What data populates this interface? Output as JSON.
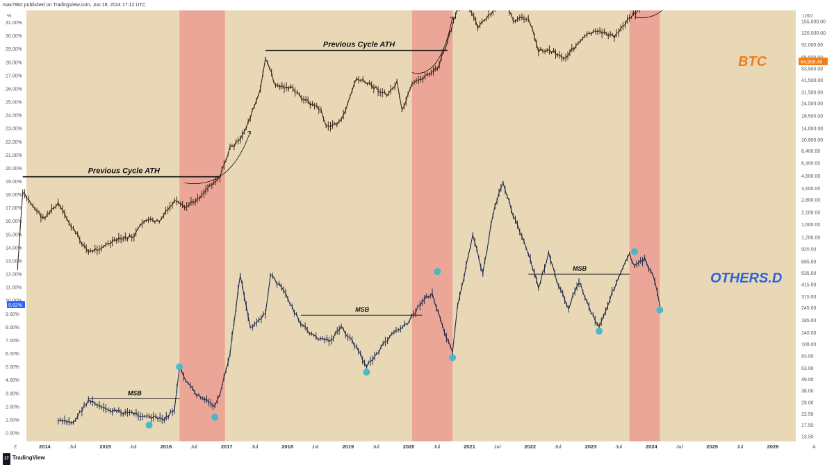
{
  "header": {
    "publisher": "max7882 published on TradingView.com, Jun 18, 2024 17:12 UTC"
  },
  "footer": {
    "brand": "TradingView",
    "brand_mark": "17",
    "left_axis_btn": "Z",
    "right_axis_btn": "A"
  },
  "colors": {
    "background": "#e8d8b6",
    "band": "#eca698",
    "btc_label": "#f07f1a",
    "others_label": "#2d62d9",
    "btc_candle": "#3a2418",
    "others_candle": "#1f2a4a",
    "marker": "#4ab8c8",
    "btc_price_tag": "#f07f1a",
    "others_value_tag": "#2962ff"
  },
  "chart_data": {
    "type": "line",
    "title": "",
    "left_axis": {
      "unit_label": "%",
      "ticks": [
        "31.00%",
        "30.00%",
        "29.00%",
        "28.00%",
        "27.00%",
        "26.00%",
        "25.00%",
        "24.00%",
        "23.00%",
        "22.00%",
        "21.00%",
        "20.00%",
        "19.00%",
        "18.00%",
        "17.00%",
        "16.00%",
        "15.00%",
        "14.00%",
        "13.00%",
        "12.00%",
        "11.00%",
        "10.00%",
        "9.00%",
        "8.00%",
        "7.00%",
        "6.00%",
        "5.00%",
        "4.00%",
        "3.00%",
        "2.00%",
        "1.00%",
        "0.00%"
      ],
      "current_value_label": "9.62%"
    },
    "right_axis": {
      "unit_label": "USD",
      "scale": "log",
      "ticks": [
        "155,000.00",
        "120,000.00",
        "92,000.00",
        "69,500.00",
        "53,500.00",
        "41,500.00",
        "31,500.00",
        "24,500.00",
        "18,500.00",
        "14,000.00",
        "10,800.00",
        "8,400.00",
        "6,400.00",
        "4,800.00",
        "3,600.00",
        "2,800.00",
        "2,100.00",
        "1,600.00",
        "1,200.00",
        "920.00",
        "695.00",
        "535.00",
        "415.00",
        "315.00",
        "245.00",
        "185.00",
        "140.00",
        "108.00",
        "83.00",
        "63.00",
        "49.00",
        "38.00",
        "29.00",
        "22.50",
        "17.50",
        "13.50"
      ],
      "current_price_label": "64,800.45"
    },
    "x_ticks": [
      {
        "label": "2014",
        "year": true
      },
      {
        "label": "Jul",
        "year": false
      },
      {
        "label": "2015",
        "year": true
      },
      {
        "label": "Jul",
        "year": false
      },
      {
        "label": "2016",
        "year": true
      },
      {
        "label": "Jul",
        "year": false
      },
      {
        "label": "2017",
        "year": true
      },
      {
        "label": "Jul",
        "year": false
      },
      {
        "label": "2018",
        "year": true
      },
      {
        "label": "Jul",
        "year": false
      },
      {
        "label": "2019",
        "year": true
      },
      {
        "label": "Jul",
        "year": false
      },
      {
        "label": "2020",
        "year": true
      },
      {
        "label": "Jul",
        "year": false
      },
      {
        "label": "2021",
        "year": true
      },
      {
        "label": "Jul",
        "year": false
      },
      {
        "label": "2022",
        "year": true
      },
      {
        "label": "Jul",
        "year": false
      },
      {
        "label": "2023",
        "year": true
      },
      {
        "label": "Jul",
        "year": false
      },
      {
        "label": "2024",
        "year": true
      },
      {
        "label": "Jul",
        "year": false
      },
      {
        "label": "2025",
        "year": true
      },
      {
        "label": "Jul",
        "year": false
      },
      {
        "label": "2026",
        "year": true
      },
      {
        "label": "Jul",
        "year": false
      }
    ],
    "highlight_periods": [
      {
        "start": "2016-07",
        "end": "2017-04"
      },
      {
        "start": "2020-05",
        "end": "2021-01"
      },
      {
        "start": "2023-12",
        "end": "2024-06"
      }
    ],
    "series": [
      {
        "name": "BTC",
        "unit": "USD",
        "points": [
          [
            "2013-11",
            150
          ],
          [
            "2013-12",
            800
          ],
          [
            "2014-02",
            600
          ],
          [
            "2014-04",
            450
          ],
          [
            "2014-07",
            620
          ],
          [
            "2014-10",
            350
          ],
          [
            "2015-01",
            210
          ],
          [
            "2015-04",
            240
          ],
          [
            "2015-07",
            280
          ],
          [
            "2015-10",
            300
          ],
          [
            "2015-12",
            430
          ],
          [
            "2016-03",
            420
          ],
          [
            "2016-06",
            660
          ],
          [
            "2016-08",
            570
          ],
          [
            "2016-11",
            730
          ],
          [
            "2017-01",
            950
          ],
          [
            "2017-03",
            1150
          ],
          [
            "2017-05",
            2200
          ],
          [
            "2017-07",
            2600
          ],
          [
            "2017-09",
            4400
          ],
          [
            "2017-11",
            8000
          ],
          [
            "2017-12",
            17000
          ],
          [
            "2018-02",
            9000
          ],
          [
            "2018-05",
            8500
          ],
          [
            "2018-08",
            6400
          ],
          [
            "2018-11",
            5200
          ],
          [
            "2018-12",
            3500
          ],
          [
            "2019-03",
            4000
          ],
          [
            "2019-06",
            10500
          ],
          [
            "2019-09",
            9000
          ],
          [
            "2019-12",
            7200
          ],
          [
            "2020-02",
            9500
          ],
          [
            "2020-03",
            5000
          ],
          [
            "2020-05",
            9000
          ],
          [
            "2020-08",
            11500
          ],
          [
            "2020-10",
            13000
          ],
          [
            "2020-12",
            24000
          ],
          [
            "2021-02",
            50000
          ],
          [
            "2021-04",
            60000
          ],
          [
            "2021-06",
            33000
          ],
          [
            "2021-09",
            47000
          ],
          [
            "2021-11",
            66000
          ],
          [
            "2022-01",
            38000
          ],
          [
            "2022-04",
            42000
          ],
          [
            "2022-06",
            20000
          ],
          [
            "2022-09",
            19500
          ],
          [
            "2022-11",
            16500
          ],
          [
            "2023-01",
            21000
          ],
          [
            "2023-04",
            29000
          ],
          [
            "2023-07",
            30000
          ],
          [
            "2023-09",
            26500
          ],
          [
            "2023-12",
            42000
          ],
          [
            "2024-02",
            50000
          ],
          [
            "2024-03",
            70000
          ],
          [
            "2024-04",
            63000
          ],
          [
            "2024-06",
            64800
          ]
        ]
      },
      {
        "name": "OTHERS.D",
        "unit": "%",
        "points": [
          [
            "2014-07",
            0.9
          ],
          [
            "2014-10",
            0.8
          ],
          [
            "2015-01",
            2.5
          ],
          [
            "2015-04",
            1.8
          ],
          [
            "2015-07",
            1.6
          ],
          [
            "2015-10",
            1.5
          ],
          [
            "2016-01",
            1.2
          ],
          [
            "2016-04",
            1.0
          ],
          [
            "2016-06",
            1.8
          ],
          [
            "2016-07",
            4.8
          ],
          [
            "2016-10",
            3.0
          ],
          [
            "2017-02",
            2.0
          ],
          [
            "2017-03",
            2.8
          ],
          [
            "2017-05",
            6.0
          ],
          [
            "2017-07",
            12.0
          ],
          [
            "2017-09",
            8.0
          ],
          [
            "2017-12",
            9.0
          ],
          [
            "2018-01",
            12.0
          ],
          [
            "2018-04",
            10.5
          ],
          [
            "2018-07",
            8.2
          ],
          [
            "2018-10",
            7.2
          ],
          [
            "2019-01",
            7.0
          ],
          [
            "2019-03",
            8.0
          ],
          [
            "2019-06",
            6.5
          ],
          [
            "2019-08",
            5.0
          ],
          [
            "2019-10",
            6.0
          ],
          [
            "2020-01",
            7.5
          ],
          [
            "2020-04",
            8.2
          ],
          [
            "2020-07",
            10.0
          ],
          [
            "2020-09",
            10.5
          ],
          [
            "2020-11",
            8.0
          ],
          [
            "2021-01",
            6.0
          ],
          [
            "2021-02",
            9.5
          ],
          [
            "2021-05",
            15.0
          ],
          [
            "2021-07",
            12.0
          ],
          [
            "2021-09",
            16.5
          ],
          [
            "2021-11",
            19.0
          ],
          [
            "2022-01",
            16.5
          ],
          [
            "2022-04",
            13.5
          ],
          [
            "2022-06",
            11.0
          ],
          [
            "2022-08",
            13.5
          ],
          [
            "2022-10",
            11.0
          ],
          [
            "2022-12",
            9.5
          ],
          [
            "2023-02",
            11.5
          ],
          [
            "2023-04",
            9.5
          ],
          [
            "2023-06",
            8.0
          ],
          [
            "2023-09",
            11.0
          ],
          [
            "2023-12",
            13.5
          ],
          [
            "2024-01",
            12.5
          ],
          [
            "2024-03",
            13.2
          ],
          [
            "2024-05",
            11.5
          ],
          [
            "2024-06",
            9.62
          ]
        ]
      }
    ],
    "annotations": [
      {
        "text": "Previous Cycle ATH",
        "series": "BTC",
        "from": "2013-12",
        "to": "2017-03",
        "level": 1150
      },
      {
        "text": "Previous Cycle ATH",
        "series": "BTC",
        "from": "2017-12",
        "to": "2020-12",
        "level": 19800
      },
      {
        "text": "Previous Cycle ATH",
        "series": "BTC",
        "from": "2021-11",
        "to": "2024-07",
        "level": 69000
      },
      {
        "text": "MSB",
        "series": "OTHERS.D",
        "from": "2015-01",
        "to": "2016-07",
        "level": 2.6
      },
      {
        "text": "MSB",
        "series": "OTHERS.D",
        "from": "2018-07",
        "to": "2020-07",
        "level": 8.9
      },
      {
        "text": "MSB",
        "series": "OTHERS.D",
        "from": "2022-04",
        "to": "2023-12",
        "level": 12.0
      }
    ],
    "markers": [
      {
        "series": "OTHERS.D",
        "date": "2016-07",
        "value": 5.0
      },
      {
        "series": "OTHERS.D",
        "date": "2016-01",
        "value": 0.6
      },
      {
        "series": "OTHERS.D",
        "date": "2017-02",
        "value": 1.2
      },
      {
        "series": "OTHERS.D",
        "date": "2019-08",
        "value": 4.6
      },
      {
        "series": "OTHERS.D",
        "date": "2020-10",
        "value": 12.2
      },
      {
        "series": "OTHERS.D",
        "date": "2021-01",
        "value": 5.7
      },
      {
        "series": "OTHERS.D",
        "date": "2023-06",
        "value": 7.7
      },
      {
        "series": "OTHERS.D",
        "date": "2024-01",
        "value": 13.7
      },
      {
        "series": "OTHERS.D",
        "date": "2024-06",
        "value": 9.3
      }
    ],
    "labels": {
      "btc": "BTC",
      "others": "OTHERS.D"
    }
  }
}
